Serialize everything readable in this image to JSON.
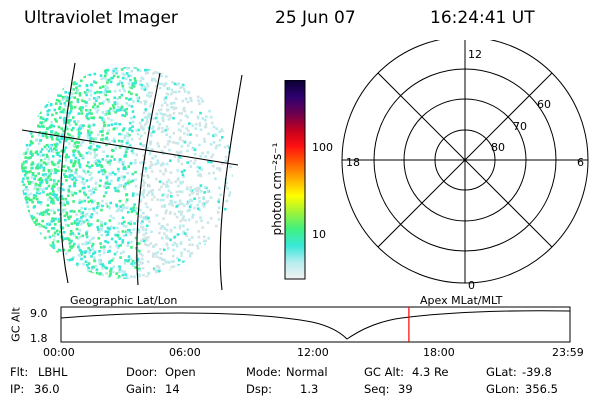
{
  "header": {
    "instrument": "Ultraviolet Imager",
    "date": "25 Jun 07",
    "time": "16:24:41 UT"
  },
  "colorbar": {
    "unit_label": "photon cm⁻²s⁻¹",
    "ticks": [
      "100",
      "10"
    ],
    "scale": "log",
    "colors": [
      "#f2f2f2",
      "#b8ecef",
      "#38e8d8",
      "#40f080",
      "#9cf23a",
      "#ffff00",
      "#ffb000",
      "#ff6000",
      "#ff1010",
      "#c00020",
      "#6a0050",
      "#2c0070",
      "#0a0030"
    ]
  },
  "polar_grid": {
    "mlt_labels": {
      "top": "12",
      "right": "6",
      "bottom": "0",
      "left": "18"
    },
    "lat_labels": [
      "60",
      "70",
      "80"
    ]
  },
  "projection_labels": {
    "left": "Geographic Lat/Lon",
    "right": "Apex  MLat/MLT"
  },
  "altitude_chart": {
    "ylabel": "GC Alt",
    "yticks": [
      "9.0",
      "1.8"
    ],
    "xticks": [
      "00:00",
      "06:00",
      "12:00",
      "18:00",
      "23:59"
    ],
    "current_time_fraction": 0.6835,
    "marker_color": "#ff0000"
  },
  "status": {
    "flt_label": "Flt:",
    "flt_value": "LBHL",
    "ip_label": "IP:",
    "ip_value": "36.0",
    "door_label": "Door:",
    "door_value": "Open",
    "gain_label": "Gain:",
    "gain_value": "14",
    "mode_label": "Mode:",
    "mode_value": "Normal",
    "dsp_label": "Dsp:",
    "dsp_value": "1.3",
    "gcalt_label": "GC Alt:",
    "gcalt_value": "4.3 Re",
    "seq_label": "Seq:",
    "seq_value": "39",
    "glat_label": "GLat:",
    "glat_value": "-39.8",
    "glon_label": "GLon:",
    "glon_value": "356.5"
  }
}
